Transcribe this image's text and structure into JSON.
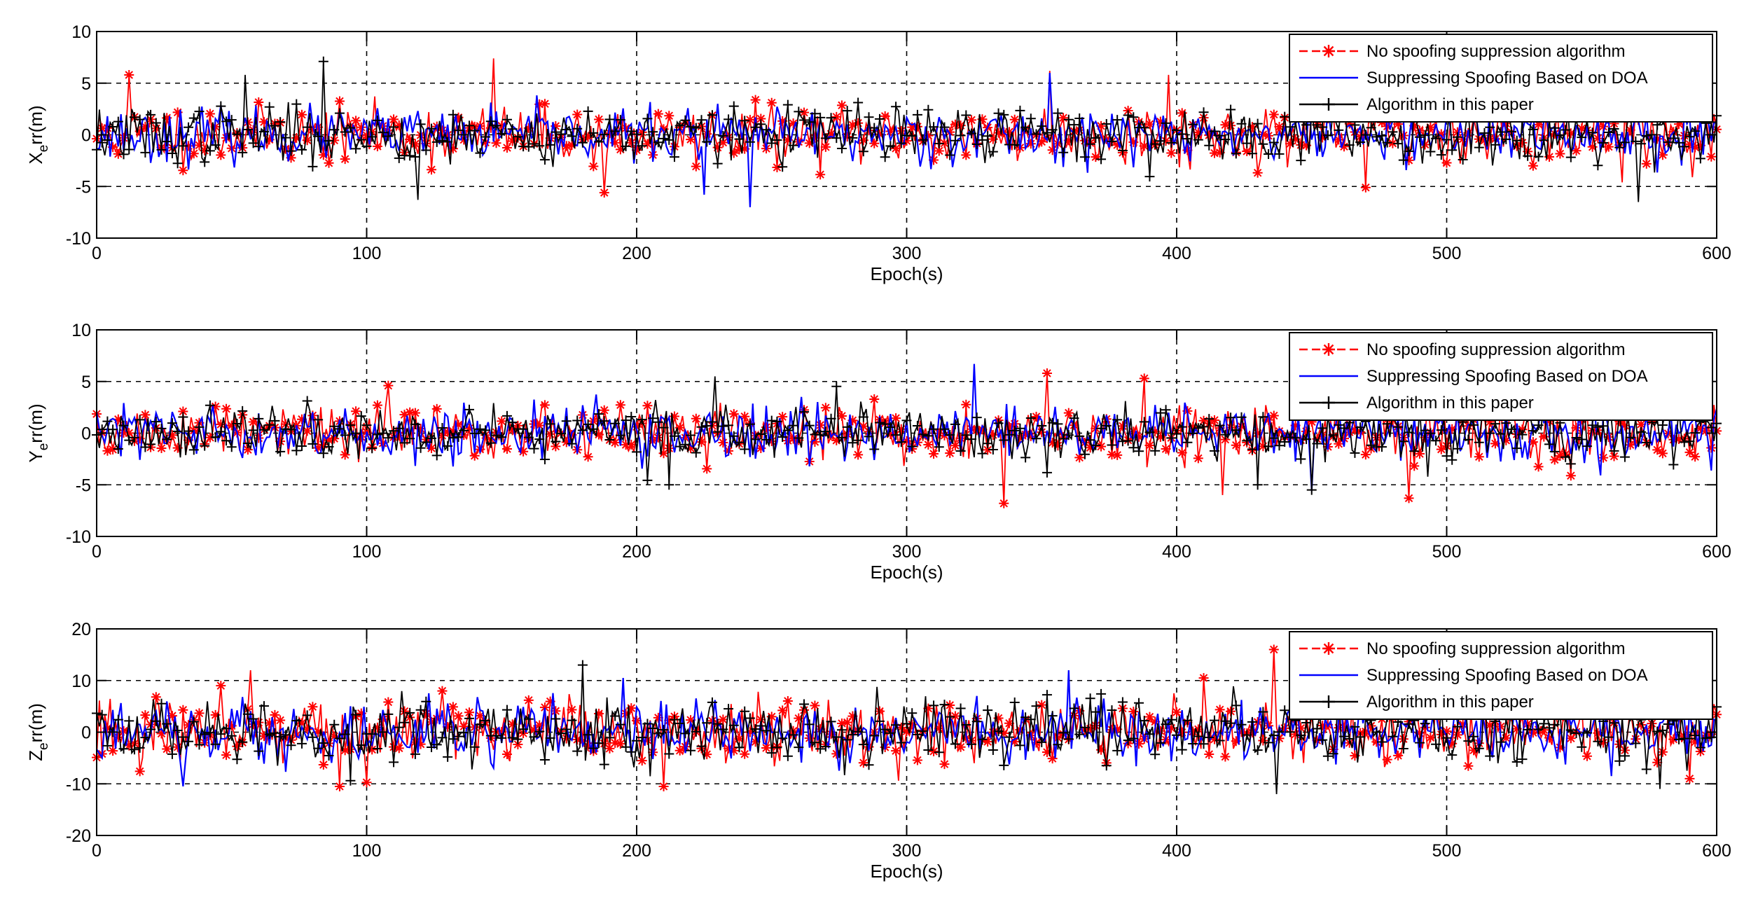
{
  "colors": {
    "no_suppression": "#ff0000",
    "doa": "#0000ff",
    "proposed": "#000000",
    "grid": "#000000"
  },
  "chart_data": [
    {
      "type": "line",
      "title": "",
      "ylabel_main": "X",
      "ylabel_sub": "e",
      "ylabel_unit": "rr(m)",
      "xlabel": "Epoch(s)",
      "xlim": [
        0,
        600
      ],
      "ylim": [
        -10,
        10
      ],
      "xticks": [
        0,
        100,
        200,
        300,
        400,
        500,
        600
      ],
      "yticks": [
        -10,
        -5,
        0,
        5,
        10
      ],
      "grid": true,
      "legend_position": "top-right",
      "series": [
        {
          "name": "No spoofing suppression algorithm",
          "color": "#ff0000",
          "marker": "asterisk",
          "amplitude": 2.2,
          "seed": 11,
          "spikes": [
            [
              12,
              5.8
            ],
            [
              147,
              7.4
            ],
            [
              188,
              -5.6
            ],
            [
              353,
              6.2
            ],
            [
              397,
              5.8
            ],
            [
              470,
              -5.1
            ],
            [
              565,
              -4.6
            ]
          ]
        },
        {
          "name": "Suppressing Spoofing Based on DOA",
          "color": "#0000ff",
          "marker": "none",
          "amplitude": 2.0,
          "seed": 23,
          "spikes": [
            [
              242,
              -7.0
            ],
            [
              353,
              6.0
            ],
            [
              225,
              -5.8
            ]
          ]
        },
        {
          "name": "Algorithm in this  paper",
          "color": "#000000",
          "marker": "plus",
          "amplitude": 2.1,
          "seed": 37,
          "spikes": [
            [
              84,
              7.1
            ],
            [
              119,
              -6.3
            ],
            [
              571,
              -6.5
            ],
            [
              55,
              5.8
            ]
          ]
        }
      ]
    },
    {
      "type": "line",
      "title": "",
      "ylabel_main": "Y",
      "ylabel_sub": "e",
      "ylabel_unit": "rr(m)",
      "xlabel": "Epoch(s)",
      "xlim": [
        0,
        600
      ],
      "ylim": [
        -10,
        10
      ],
      "xticks": [
        0,
        100,
        200,
        300,
        400,
        500,
        600
      ],
      "yticks": [
        -10,
        -5,
        0,
        5,
        10
      ],
      "grid": true,
      "legend_position": "top-right",
      "series": [
        {
          "name": "No spoofing suppression algorithm",
          "color": "#ff0000",
          "marker": "asterisk",
          "amplitude": 2.2,
          "seed": 51,
          "spikes": [
            [
              336,
              -6.8
            ],
            [
              352,
              5.8
            ],
            [
              388,
              5.3
            ],
            [
              417,
              -6.0
            ],
            [
              486,
              -6.3
            ],
            [
              108,
              4.6
            ]
          ]
        },
        {
          "name": "Suppressing Spoofing Based on DOA",
          "color": "#0000ff",
          "marker": "none",
          "amplitude": 2.0,
          "seed": 63,
          "spikes": [
            [
              325,
              6.7
            ],
            [
              450,
              -5.6
            ]
          ]
        },
        {
          "name": "Algorithm in this  paper",
          "color": "#000000",
          "marker": "plus",
          "amplitude": 2.1,
          "seed": 77,
          "spikes": [
            [
              229,
              5.5
            ],
            [
              212,
              -5.0
            ],
            [
              450,
              -5.5
            ],
            [
              430,
              -5.0
            ]
          ]
        }
      ]
    },
    {
      "type": "line",
      "title": "",
      "ylabel_main": "Z",
      "ylabel_sub": "e",
      "ylabel_unit": "rr(m)",
      "xlabel": "Epoch(s)",
      "xlim": [
        0,
        600
      ],
      "ylim": [
        -20,
        20
      ],
      "xticks": [
        0,
        100,
        200,
        300,
        400,
        500,
        600
      ],
      "yticks": [
        -20,
        -10,
        0,
        10,
        20
      ],
      "grid": true,
      "legend_position": "top-right",
      "series": [
        {
          "name": "No spoofing suppression algorithm",
          "color": "#ff0000",
          "marker": "asterisk",
          "amplitude": 5.0,
          "seed": 91,
          "spikes": [
            [
              57,
              12.0
            ],
            [
              436,
              16.0
            ],
            [
              90,
              -10.5
            ],
            [
              210,
              -10.5
            ],
            [
              410,
              10.5
            ],
            [
              590,
              -9.0
            ]
          ]
        },
        {
          "name": "Suppressing Spoofing Based on DOA",
          "color": "#0000ff",
          "marker": "none",
          "amplitude": 4.6,
          "seed": 103,
          "spikes": [
            [
              195,
              10.5
            ],
            [
              360,
              12.0
            ],
            [
              32,
              -10.5
            ]
          ]
        },
        {
          "name": "Algorithm in this  paper",
          "color": "#000000",
          "marker": "plus",
          "amplitude": 4.8,
          "seed": 117,
          "spikes": [
            [
              180,
              13.0
            ],
            [
              437,
              -12.0
            ],
            [
              579,
              -11.0
            ]
          ]
        }
      ]
    }
  ]
}
